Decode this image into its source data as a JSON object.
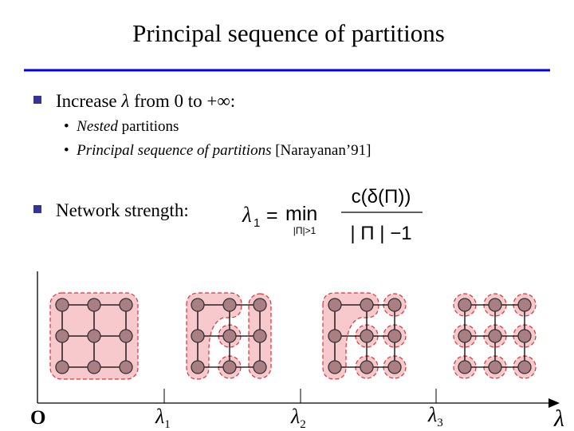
{
  "title": "Principal sequence of partitions",
  "bullets": [
    {
      "parts": [
        "Increase ",
        "λ",
        " from 0 to +∞:"
      ],
      "sub": [
        {
          "italic": "Nested",
          "rest": " partitions"
        },
        {
          "italic": "Principal sequence of partitions",
          "rest": " [Narayanan’91]"
        }
      ]
    },
    {
      "text": "Network strength:"
    }
  ],
  "formula": {
    "lhs": "λ",
    "lhs_sub": "1",
    "eq": "=",
    "op": "min",
    "op_sub": "|Π|>1",
    "numerator": "c(δ(Π))",
    "denominator": "| Π | −1"
  },
  "axis": {
    "origin": "O",
    "ticks": [
      {
        "symbol": "λ",
        "sub": "1"
      },
      {
        "symbol": "λ",
        "sub": "2"
      },
      {
        "symbol": "λ",
        "sub": "3"
      }
    ],
    "end": "λ"
  }
}
